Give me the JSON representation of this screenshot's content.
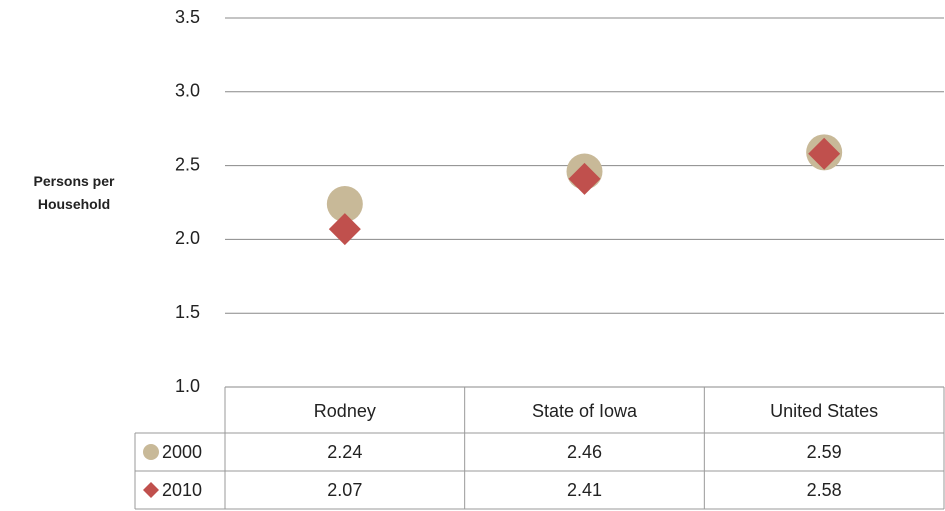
{
  "chart_data": {
    "type": "scatter",
    "y_label": "Persons per Household",
    "categories": [
      "Rodney",
      "State of Iowa",
      "United States"
    ],
    "series": [
      {
        "name": "2000",
        "color": "#c8b998",
        "marker": "circle",
        "values": [
          2.24,
          2.46,
          2.59
        ]
      },
      {
        "name": "2010",
        "color": "#c0504d",
        "marker": "diamond",
        "values": [
          2.07,
          2.41,
          2.58
        ]
      }
    ],
    "ylim": [
      1,
      3.5
    ],
    "yticks": [
      {
        "value": 1,
        "label": "1.0"
      },
      1.5,
      {
        "value": 2,
        "label": "2.0"
      },
      2.5,
      {
        "value": 3,
        "label": "3.0"
      },
      3.5
    ],
    "grid": true,
    "data_table": true
  }
}
